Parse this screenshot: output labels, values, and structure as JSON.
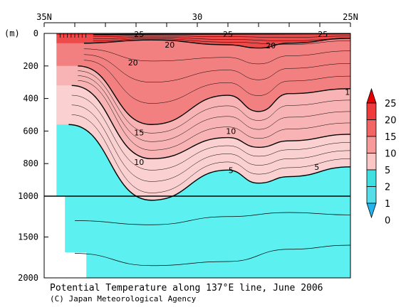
{
  "chart_data": {
    "type": "contour",
    "title": "Potential Temperature along 137°E line, June 2006",
    "credit": "(C) Japan Meteorological Agency",
    "x_axis": {
      "ticks": [
        "35N",
        "30",
        "25N"
      ],
      "range_lat": [
        35,
        25
      ]
    },
    "y_axis": {
      "unit": "(m)",
      "upper_ticks": [
        "0",
        "200",
        "400",
        "600",
        "800",
        "1000"
      ],
      "lower_ticks": [
        "1500",
        "2000"
      ],
      "range_m": [
        0,
        2000
      ]
    },
    "isotherms": [
      {
        "level": 25,
        "depth_m_at": [
          [
            33.4,
            8
          ],
          [
            31.5,
            5
          ],
          [
            29,
            4
          ],
          [
            27,
            3
          ],
          [
            25,
            2
          ]
        ]
      },
      {
        "level": 20,
        "depth_m_at": [
          [
            33.7,
            60
          ],
          [
            31.5,
            40
          ],
          [
            29,
            70
          ],
          [
            28,
            90
          ],
          [
            27,
            60
          ],
          [
            25,
            30
          ]
        ]
      },
      {
        "level": 15,
        "depth_m_at": [
          [
            33.9,
            200
          ],
          [
            31.5,
            560
          ],
          [
            29,
            380
          ],
          [
            28,
            480
          ],
          [
            27,
            370
          ],
          [
            25,
            340
          ]
        ]
      },
      {
        "level": 10,
        "depth_m_at": [
          [
            34.1,
            320
          ],
          [
            31.5,
            770
          ],
          [
            29,
            640
          ],
          [
            28,
            700
          ],
          [
            27,
            660
          ],
          [
            25,
            620
          ]
        ]
      },
      {
        "level": 5,
        "depth_m_at": [
          [
            34.2,
            560
          ],
          [
            31.5,
            1050
          ],
          [
            29,
            840
          ],
          [
            28,
            920
          ],
          [
            27,
            880
          ],
          [
            25,
            820
          ]
        ]
      }
    ],
    "contour_labels": [
      {
        "text": "25",
        "lat": 31.9,
        "depth": 5
      },
      {
        "text": "25",
        "lat": 29.0,
        "depth": 5
      },
      {
        "text": "25",
        "lat": 25.9,
        "depth": 5
      },
      {
        "text": "20",
        "lat": 30.9,
        "depth": 70
      },
      {
        "text": "20",
        "lat": 27.6,
        "depth": 75
      },
      {
        "text": "20",
        "lat": 32.1,
        "depth": 180
      },
      {
        "text": "15",
        "lat": 31.9,
        "depth": 610
      },
      {
        "text": "10",
        "lat": 31.9,
        "depth": 790
      },
      {
        "text": "10",
        "lat": 28.9,
        "depth": 600
      },
      {
        "text": "5",
        "lat": 28.9,
        "depth": 840
      },
      {
        "text": "5",
        "lat": 26.1,
        "depth": 820
      },
      {
        "text": "1",
        "lat": 25.1,
        "depth": 360
      }
    ],
    "colorbar": {
      "levels": [
        "25",
        "20",
        "15",
        "10",
        "5",
        "2",
        "1",
        "0"
      ],
      "colors": [
        "#e80000",
        "#ee3b3b",
        "#f36464",
        "#f79a9a",
        "#fac6c6",
        "#40e0e0",
        "#55dde8",
        "#22b4f0"
      ]
    },
    "bands": {
      "warm_top": "#e81c1c",
      "upper": "#ee4a4a",
      "mid": "#f38080",
      "lower": "#f8b4b4",
      "deep_pink": "#fbd0d0",
      "cold": "#5df0f0",
      "land": "#ffffff"
    }
  }
}
